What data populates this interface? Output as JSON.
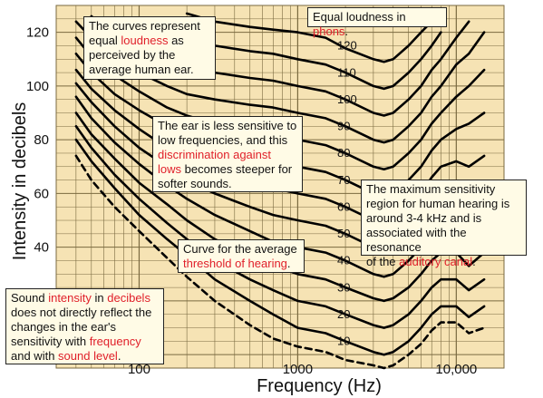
{
  "colors": {
    "plot_background": "#f6e3b4",
    "grid": "#7a6a40",
    "curve": "#000000",
    "highlight": "#e0202a",
    "callout_background": "#fffbe6"
  },
  "chart_data": {
    "type": "line",
    "x_scale": "log",
    "xlim": [
      30,
      20000
    ],
    "ylim": [
      -5,
      130
    ],
    "xlabel": "Frequency (Hz)",
    "ylabel": "Intensity in decibels",
    "grid": true,
    "x_ticks": [
      {
        "value": 100,
        "label": "100",
        "highlight": false
      },
      {
        "value": 1000,
        "label": "1000",
        "highlight": true
      },
      {
        "value": 10000,
        "label": "10,000",
        "highlight": false
      }
    ],
    "y_ticks": [
      40,
      60,
      80,
      100,
      120
    ],
    "x": [
      40,
      50,
      70,
      100,
      150,
      200,
      300,
      500,
      700,
      1000,
      1500,
      2000,
      3000,
      3500,
      4000,
      5000,
      6000,
      7000,
      8000,
      10000,
      12000,
      15000
    ],
    "series": [
      {
        "name": "120",
        "values": [
          null,
          null,
          null,
          null,
          null,
          127,
          124,
          122,
          121,
          120,
          118,
          114,
          110,
          109,
          110,
          115,
          120,
          124,
          127,
          null,
          null,
          null
        ]
      },
      {
        "name": "110",
        "values": [
          null,
          null,
          null,
          125,
          120,
          118,
          115,
          113,
          112,
          110,
          108,
          105,
          100,
          99,
          100,
          105,
          110,
          115,
          120,
          null,
          null,
          null
        ]
      },
      {
        "name": "100",
        "values": [
          null,
          126,
          119,
          113,
          109,
          107,
          105,
          103,
          102,
          100,
          98,
          95,
          90,
          89,
          90,
          95,
          100,
          106,
          110,
          118,
          124,
          null
        ]
      },
      {
        "name": "90",
        "values": [
          124,
          118,
          110,
          105,
          100,
          97,
          95,
          93,
          92,
          90,
          88,
          85,
          80,
          79,
          80,
          85,
          90,
          96,
          100,
          108,
          112,
          120
        ]
      },
      {
        "name": "80",
        "values": [
          118,
          111,
          104,
          98,
          92,
          89,
          86,
          83,
          82,
          80,
          78,
          75,
          70,
          69,
          70,
          75,
          80,
          86,
          90,
          96,
          100,
          106
        ]
      },
      {
        "name": "70",
        "values": [
          112,
          105,
          97,
          91,
          85,
          81,
          77,
          73,
          72,
          70,
          68,
          65,
          60,
          59,
          60,
          65,
          70,
          76,
          80,
          84,
          86,
          90
        ]
      },
      {
        "name": "60",
        "values": [
          106,
          99,
          91,
          84,
          77,
          73,
          68,
          64,
          62,
          60,
          58,
          55,
          50,
          49,
          50,
          55,
          60,
          66,
          70,
          72,
          70,
          74
        ]
      },
      {
        "name": "50",
        "values": [
          101,
          94,
          85,
          77,
          70,
          65,
          60,
          55,
          52,
          50,
          48,
          45,
          40,
          39,
          40,
          45,
          50,
          55,
          58,
          60,
          56,
          60
        ]
      },
      {
        "name": "40",
        "values": [
          96,
          88,
          79,
          71,
          63,
          58,
          52,
          46,
          42,
          40,
          38,
          35,
          30,
          29,
          30,
          35,
          40,
          45,
          48,
          48,
          44,
          48
        ]
      },
      {
        "name": "30",
        "values": [
          90,
          82,
          73,
          64,
          56,
          50,
          43,
          37,
          33,
          30,
          28,
          25,
          21,
          20,
          21,
          25,
          30,
          35,
          38,
          38,
          33,
          38
        ]
      },
      {
        "name": "20",
        "values": [
          85,
          77,
          67,
          58,
          49,
          43,
          35,
          28,
          24,
          20,
          18,
          15,
          11,
          10,
          11,
          15,
          20,
          25,
          28,
          28,
          24,
          28
        ]
      },
      {
        "name": "10",
        "values": [
          80,
          72,
          62,
          52,
          43,
          37,
          28,
          20,
          15,
          10,
          8,
          5,
          1,
          0,
          1,
          5,
          10,
          15,
          18,
          18,
          14,
          18
        ]
      },
      {
        "name": "threshold",
        "dashed": true,
        "values": [
          74,
          65,
          55,
          46,
          36,
          29,
          20,
          11,
          6,
          3,
          1,
          -2,
          -4,
          -5,
          -4,
          0,
          4,
          9,
          12,
          12,
          8,
          10
        ]
      }
    ],
    "phon_labels": [
      "120",
      "110",
      "100",
      "90",
      "80",
      "70",
      "60",
      "50",
      "40",
      "30",
      "20",
      "10"
    ]
  },
  "callouts": {
    "legend": {
      "pre": "Equal loudness in ",
      "red": "phons",
      "post": "."
    },
    "curves": {
      "line1": "The curves represent",
      "pre": "equal ",
      "red": "loudness",
      "post": " as",
      "line3": "perceived by the",
      "line4": "average human ear."
    },
    "lows": {
      "line1": "The ear is less sensitive to",
      "line2": "low frequencies, and this",
      "red1": "discrimination against",
      "red2": "lows",
      "post": " becomes steeper for",
      "line5": "softer sounds."
    },
    "sensitivity": {
      "line1": "The maximum sensitivity",
      "line2": "region for  human hearing is",
      "line3": "around 3-4 kHz and is",
      "line4": "associated with the resonance",
      "pre": "of the ",
      "red": "auditory canal",
      "post": "."
    },
    "threshold": {
      "line1": "Curve for the average",
      "red": "threshold of hearing",
      "post": "."
    },
    "intensity": {
      "pre1": "Sound ",
      "red1": "intensity",
      "mid1": " in ",
      "red2": "decibels",
      "line2": "does not directly reflect the",
      "line3": "changes in the ear's",
      "pre4": "sensitivity with ",
      "red4": "frequency",
      "pre5": "and with ",
      "red5": "sound level",
      "post5": "."
    }
  }
}
